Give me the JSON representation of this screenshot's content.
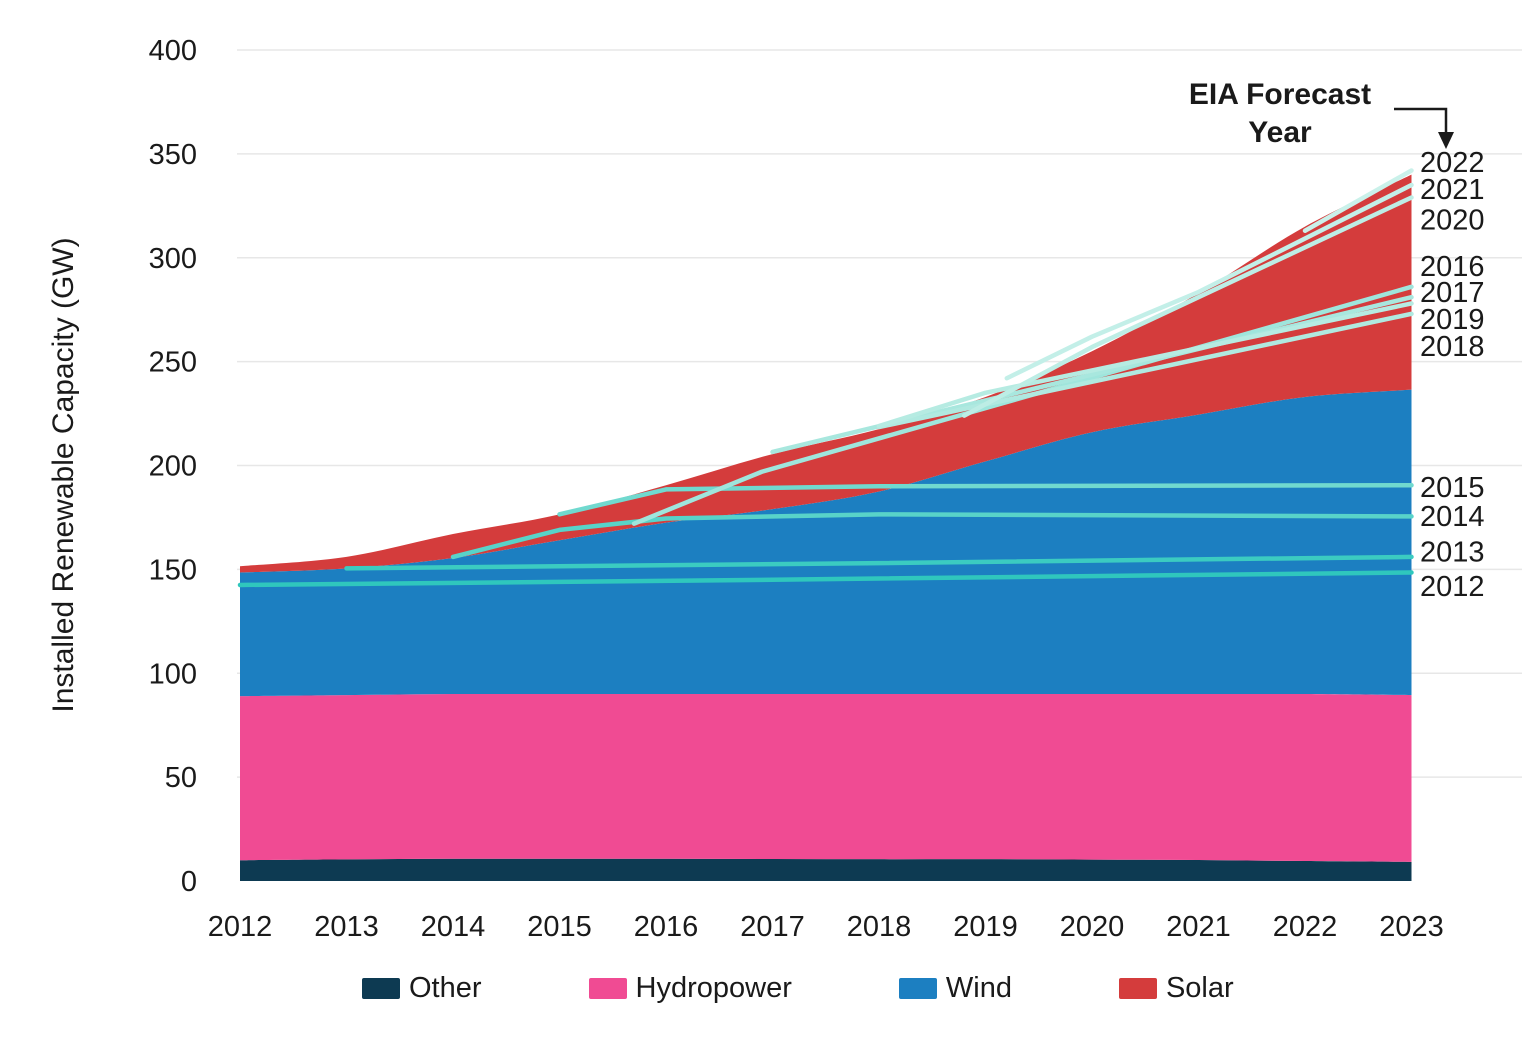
{
  "y_axis": {
    "title": "Installed Renewable Capacity (GW)",
    "ticks": [
      0,
      50,
      100,
      150,
      200,
      250,
      300,
      350,
      400
    ],
    "min": 0,
    "max": 400
  },
  "x_axis": {
    "ticks": [
      2012,
      2013,
      2014,
      2015,
      2016,
      2017,
      2018,
      2019,
      2020,
      2021,
      2022,
      2023
    ]
  },
  "annotation": {
    "line1": "EIA Forecast",
    "line2": "Year"
  },
  "colors": {
    "background": "#ffffff",
    "grid": "#e7e7e7",
    "text": "#1a1a1a",
    "other": "#0d3a52",
    "hydropower": "#f04b93",
    "wind": "#1c7fc1",
    "solar": "#d43c3c"
  },
  "legend": {
    "items": [
      {
        "label": "Other",
        "color": "#0d3a52"
      },
      {
        "label": "Hydropower",
        "color": "#f04b93"
      },
      {
        "label": "Wind",
        "color": "#1c7fc1"
      },
      {
        "label": "Solar",
        "color": "#d43c3c"
      }
    ]
  },
  "chart_data": {
    "type": "area",
    "stacked": true,
    "title": "",
    "ylabel": "Installed Renewable Capacity (GW)",
    "ylim": [
      0,
      400
    ],
    "grid": "horizontal",
    "legend_position": "bottom",
    "x": [
      2012,
      2013,
      2014,
      2015,
      2016,
      2017,
      2018,
      2019,
      2020,
      2021,
      2022,
      2023
    ],
    "series": [
      {
        "name": "Other",
        "color": "#0d3a52",
        "values": [
          10,
          10.4,
          10.7,
          10.7,
          10.7,
          10.6,
          10.5,
          10.5,
          10.3,
          10.1,
          9.6,
          9.2
        ]
      },
      {
        "name": "Hydropower",
        "color": "#f04b93",
        "values": [
          79,
          79.1,
          79.3,
          79.3,
          79.3,
          79.4,
          79.5,
          79.5,
          79.7,
          79.9,
          80.4,
          80.3
        ]
      },
      {
        "name": "Wind",
        "color": "#1c7fc1",
        "values": [
          59.5,
          61,
          65.5,
          74,
          82.5,
          89,
          97.5,
          112,
          126,
          134.5,
          143,
          147
        ]
      },
      {
        "name": "Solar",
        "color": "#d43c3c",
        "values": [
          3,
          5.5,
          11.5,
          12.5,
          18,
          26.5,
          30,
          31,
          39,
          58.5,
          82,
          103.5
        ]
      }
    ],
    "forecast_lines": [
      {
        "vintage": "2012",
        "color": "#2fc7bd",
        "label_gw": 142.0,
        "points": [
          [
            2012,
            142.5
          ],
          [
            2017,
            145
          ],
          [
            2023,
            148.5
          ]
        ]
      },
      {
        "vintage": "2013",
        "color": "#3bcbc1",
        "label_gw": 158.5,
        "points": [
          [
            2013,
            150.5
          ],
          [
            2018,
            153
          ],
          [
            2023,
            156
          ]
        ]
      },
      {
        "vintage": "2014",
        "color": "#58d3c9",
        "label_gw": 175.7,
        "points": [
          [
            2014,
            156
          ],
          [
            2015,
            169
          ],
          [
            2016,
            174.5
          ],
          [
            2018,
            176.5
          ],
          [
            2023,
            175.5
          ]
        ]
      },
      {
        "vintage": "2015",
        "color": "#70d9cf",
        "label_gw": 189.7,
        "points": [
          [
            2015,
            176.5
          ],
          [
            2016,
            188.5
          ],
          [
            2018,
            190
          ],
          [
            2023,
            190.5
          ]
        ]
      },
      {
        "vintage": "2016",
        "color": "#9fe5dc",
        "label_gw": 296.0,
        "points": [
          [
            2015.7,
            172
          ],
          [
            2016.9,
            197
          ],
          [
            2023,
            286
          ]
        ]
      },
      {
        "vintage": "2017",
        "color": "#a8e7de",
        "label_gw": 283.5,
        "points": [
          [
            2017,
            206.5
          ],
          [
            2023,
            281
          ]
        ]
      },
      {
        "vintage": "2018",
        "color": "#b0e9e0",
        "label_gw": 257.5,
        "points": [
          [
            2018,
            218.5
          ],
          [
            2023,
            273
          ]
        ]
      },
      {
        "vintage": "2019",
        "color": "#b6ebe2",
        "label_gw": 270.5,
        "points": [
          [
            2018,
            219
          ],
          [
            2019,
            235
          ],
          [
            2023,
            278
          ]
        ]
      },
      {
        "vintage": "2020",
        "color": "#bdede5",
        "label_gw": 318.5,
        "points": [
          [
            2018.8,
            224
          ],
          [
            2020,
            257
          ],
          [
            2021,
            281
          ],
          [
            2023,
            329
          ]
        ]
      },
      {
        "vintage": "2021",
        "color": "#c3efe8",
        "label_gw": 333.0,
        "points": [
          [
            2019.2,
            242
          ],
          [
            2020,
            262
          ],
          [
            2021,
            283.5
          ],
          [
            2023,
            335
          ]
        ]
      },
      {
        "vintage": "2022",
        "color": "#caf1ea",
        "label_gw": 346.0,
        "points": [
          [
            2022,
            313
          ],
          [
            2023,
            342
          ]
        ]
      }
    ]
  }
}
